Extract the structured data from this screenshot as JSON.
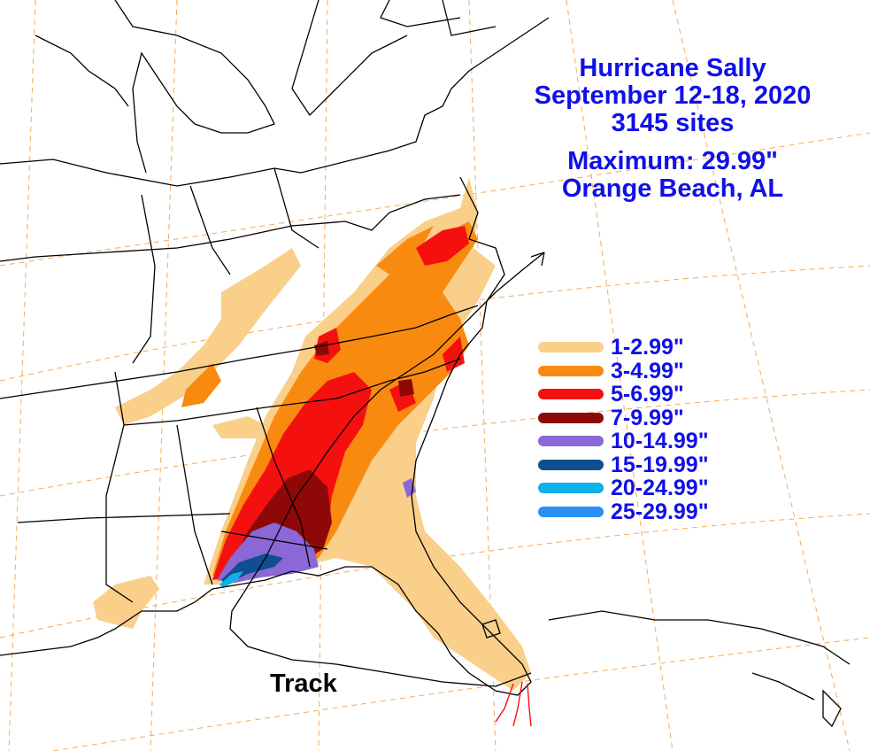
{
  "title": {
    "line1": "Hurricane Sally",
    "line2": "September 12-18, 2020",
    "line3": "3145 sites",
    "max_line": "Maximum: 29.99\"",
    "max_location": "Orange Beach, AL"
  },
  "legend": [
    {
      "label": "1-2.99\"",
      "color": "#f9cf8a"
    },
    {
      "label": "3-4.99\"",
      "color": "#f98a10"
    },
    {
      "label": "5-6.99\"",
      "color": "#f51010"
    },
    {
      "label": "7-9.99\"",
      "color": "#8f0808"
    },
    {
      "label": "10-14.99\"",
      "color": "#8a68d6"
    },
    {
      "label": "15-19.99\"",
      "color": "#104f8f"
    },
    {
      "label": "20-24.99\"",
      "color": "#10b0e8"
    },
    {
      "label": "25-29.99\"",
      "color": "#2b90f5"
    }
  ],
  "track_label": "Track",
  "colors": {
    "text": "#1010e8",
    "track": "#000000",
    "gridlines": "#f5a95a",
    "borders": "#000000"
  }
}
